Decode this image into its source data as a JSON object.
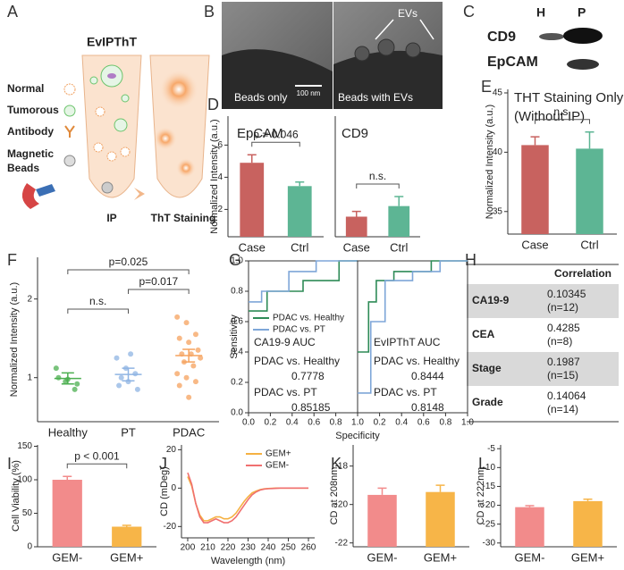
{
  "panel_labels": [
    "A",
    "B",
    "C",
    "D",
    "E",
    "F",
    "G",
    "H",
    "I",
    "J",
    "K",
    "L"
  ],
  "schematic": {
    "title": "EvIPThT",
    "legend": [
      "Normal",
      "Tumorous",
      "Antibody",
      "Magnetic",
      "Beads"
    ],
    "steps": [
      "IP",
      "ThT Staining"
    ]
  },
  "micrographs": {
    "left": "Beads only",
    "right": "Beads with EVs",
    "arrow_label": "EVs",
    "scale_bar": "100 nm"
  },
  "blot": {
    "lanes": [
      "H",
      "P"
    ],
    "proteins": [
      "CD9",
      "EpCAM"
    ]
  },
  "table": {
    "header": "Correlation",
    "rows": [
      [
        "CA19-9",
        "0.10345",
        "(n=12)"
      ],
      [
        "CEA",
        "0.4285",
        "(n=8)"
      ],
      [
        "Stage",
        "0.1987",
        "(n=15)"
      ],
      [
        "Grade",
        "0.14064",
        "(n=14)"
      ]
    ]
  },
  "chart_data": [
    {
      "type": "bar",
      "title": "EpCAM",
      "ylabel": "Normalized Intensity (a.u.)",
      "categories": [
        "Case",
        "Ctrl"
      ],
      "values": [
        4.9,
        3.45
      ],
      "errors": [
        0.5,
        0.25
      ],
      "colors": [
        "#c8625f",
        "#5db594"
      ],
      "ylim": [
        0.3,
        7.8
      ],
      "yticks": [
        2,
        4,
        6
      ],
      "annotation": "p = 0.046"
    },
    {
      "type": "bar",
      "title": "CD9",
      "categories": [
        "Case",
        "Ctrl"
      ],
      "values": [
        2.75,
        3.25
      ],
      "errors": [
        0.25,
        0.45
      ],
      "colors": [
        "#c8625f",
        "#5db594"
      ],
      "ylim": [
        1.8,
        7.5
      ],
      "annotation": "n.s."
    },
    {
      "type": "bar",
      "title": [
        "THT Staining Only",
        "(Without IP)"
      ],
      "ylabel": "Normalized Intensity (a.u.)",
      "categories": [
        "Case",
        "Ctrl"
      ],
      "values": [
        40.6,
        40.3
      ],
      "errors": [
        0.7,
        1.4
      ],
      "colors": [
        "#c8625f",
        "#5db594"
      ],
      "ylim": [
        33.1,
        45.3
      ],
      "yticks": [
        35,
        40,
        45
      ],
      "annotation": "n.s."
    },
    {
      "type": "strip",
      "ylabel": "Normalized Intensity (a.u.)",
      "categories": [
        "Healthy",
        "PT",
        "PDAC"
      ],
      "colors": [
        "#4caf50",
        "#8fb4e3",
        "#f5a25d"
      ],
      "values": [
        [
          1.12,
          0.95,
          0.85,
          1.0,
          0.98,
          0.92
        ],
        [
          1.25,
          1.12,
          1.05,
          0.9,
          0.95,
          0.85,
          1.0,
          1.3
        ],
        [
          1.77,
          1.7,
          1.55,
          1.5,
          1.45,
          1.35,
          1.3,
          1.3,
          1.25,
          1.2,
          1.15,
          1.05,
          1.0,
          0.95,
          0.9,
          0.75
        ]
      ],
      "means": [
        0.99,
        1.04,
        1.28
      ],
      "errors": [
        0.07,
        0.08,
        0.08
      ],
      "ylim": [
        0.44,
        2.53
      ],
      "yticks": [
        1,
        2
      ],
      "annotations": [
        "p=0.025",
        "n.s.",
        "p=0.017"
      ]
    },
    {
      "type": "line",
      "frame": true,
      "ylabel": "Sensitivity",
      "xlabel": "Specificity",
      "xlim": [
        0,
        1
      ],
      "ylim": [
        0,
        1
      ],
      "xticks": [
        {
          "value": 0,
          "label": "0.0"
        },
        0.2,
        0.4,
        0.6,
        0.8,
        {
          "value": 1,
          "label": "1.0"
        }
      ],
      "yticks": [
        {
          "value": 0,
          "label": "0.0"
        },
        0.2,
        0.4,
        0.6,
        0.8,
        {
          "value": 1,
          "label": "1.0"
        }
      ],
      "series": [
        {
          "name": "PDAC vs. Healthy",
          "color": "#2e8b57",
          "x": [
            0,
            0.17,
            0.17,
            0.5,
            0.5,
            0.83,
            0.83,
            1
          ],
          "values": [
            0.67,
            0.67,
            0.8,
            0.8,
            0.87,
            0.87,
            1,
            1
          ]
        },
        {
          "name": "PDAC vs. PT",
          "color": "#7ea6d8",
          "x": [
            0,
            0.12,
            0.12,
            0.37,
            0.37,
            0.62,
            0.62,
            1
          ],
          "values": [
            0.73,
            0.73,
            0.8,
            0.8,
            0.93,
            0.93,
            1,
            1
          ]
        }
      ],
      "auc_title": "CA19-9 AUC",
      "auc_labels": [
        "PDAC vs. Healthy",
        "PDAC vs. PT"
      ],
      "auc": [
        0.7778,
        0.85185
      ]
    },
    {
      "type": "line",
      "frame": true,
      "xlim": [
        0,
        1
      ],
      "ylim": [
        0,
        1
      ],
      "xticks": [
        0.2,
        0.4,
        0.6,
        0.8,
        {
          "value": 1,
          "label": "1.0"
        }
      ],
      "series": [
        {
          "color": "#2e8b57",
          "x": [
            0,
            0.1,
            0.1,
            0.17,
            0.17,
            0.33,
            0.33,
            0.67,
            0.67,
            1
          ],
          "values": [
            0.4,
            0.4,
            0.73,
            0.73,
            0.87,
            0.87,
            0.93,
            0.93,
            1,
            1
          ]
        },
        {
          "color": "#7ea6d8",
          "x": [
            0,
            0.12,
            0.12,
            0.25,
            0.25,
            0.5,
            0.5,
            0.75,
            0.75,
            1
          ],
          "values": [
            0.13,
            0.13,
            0.6,
            0.6,
            0.87,
            0.87,
            0.93,
            0.93,
            1,
            1
          ]
        }
      ],
      "auc_title": "EvIPThT AUC",
      "auc_labels": [
        "PDAC vs. Healthy",
        "PDAC vs. PT"
      ],
      "auc": [
        0.8444,
        0.8148
      ]
    },
    {
      "type": "bar",
      "ylabel": "Cell Viability (%)",
      "categories": [
        "GEM-",
        "GEM+"
      ],
      "values": [
        100,
        30
      ],
      "errors": [
        5,
        2
      ],
      "colors": [
        "#f28b8b",
        "#f7b548"
      ],
      "ylim": [
        0,
        152
      ],
      "yticks": [
        0,
        50,
        100,
        150
      ],
      "annotation": "p < 0.001"
    },
    {
      "type": "line",
      "ylabel": "CD (mDeg)",
      "xlabel": "Wavelength (nm)",
      "xlim": [
        196.9,
        263.1
      ],
      "ylim": [
        -25.9,
        22.5
      ],
      "xticks": [
        200,
        210,
        220,
        230,
        240,
        250,
        260
      ],
      "yticks": [
        -20,
        0,
        20
      ],
      "x": [
        200,
        202,
        204,
        206,
        208,
        210,
        212,
        214,
        216,
        218,
        220,
        222,
        224,
        226,
        228,
        230,
        232,
        234,
        236,
        238,
        240,
        242,
        244,
        246,
        248,
        250,
        252,
        254,
        256,
        258,
        260
      ],
      "series": [
        {
          "name": "GEM+",
          "color": "#f5b142",
          "values": [
            6,
            1,
            -8,
            -14,
            -17,
            -17,
            -16,
            -15,
            -15,
            -16,
            -16,
            -15,
            -13,
            -10,
            -7,
            -4.5,
            -2.5,
            -1.5,
            -0.8,
            -0.4,
            -0.2,
            -0.1,
            0,
            0,
            0,
            0,
            0,
            0,
            0,
            0,
            0
          ]
        },
        {
          "name": "GEM-",
          "color": "#f07070",
          "values": [
            8,
            2,
            -8,
            -15,
            -18,
            -18,
            -17,
            -16,
            -17,
            -18,
            -18,
            -17,
            -15,
            -12,
            -9,
            -6,
            -3.5,
            -2,
            -1,
            -0.5,
            -0.3,
            -0.2,
            -0.1,
            0,
            0,
            0,
            0,
            0,
            0,
            0,
            0
          ]
        }
      ]
    },
    {
      "type": "bar",
      "ylabel": "CD at 208nm",
      "categories": [
        "GEM-",
        "GEM+"
      ],
      "values": [
        -19.5,
        -19.35
      ],
      "errors": [
        0.35,
        0.35
      ],
      "colors": [
        "#f28b8b",
        "#f7b548"
      ],
      "ylim": [
        -22.2,
        -16.9
      ],
      "yticks": [
        -22,
        -20,
        -18
      ]
    },
    {
      "type": "bar",
      "ylabel": "CD at 222nm",
      "categories": [
        "GEM-",
        "GEM+"
      ],
      "values": [
        -20.5,
        -18.9
      ],
      "errors": [
        0.4,
        0.5
      ],
      "colors": [
        "#f28b8b",
        "#f7b548"
      ],
      "ylim": [
        -31,
        -4
      ],
      "yticks": [
        -30,
        -25,
        -20,
        -15,
        -10,
        -5
      ]
    }
  ]
}
